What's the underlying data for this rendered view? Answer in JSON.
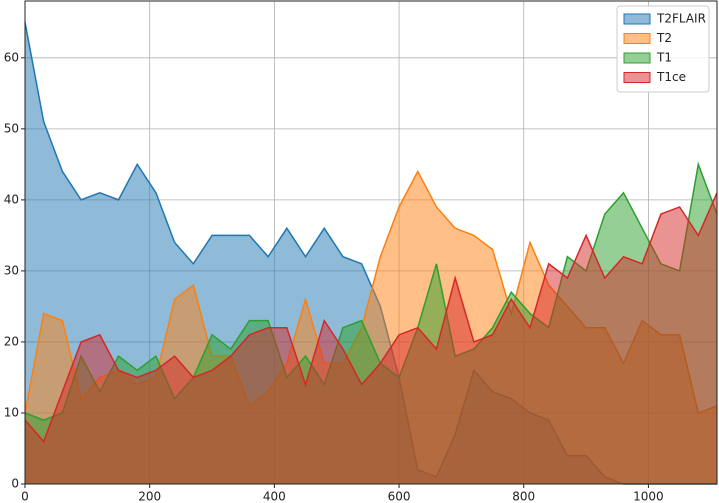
{
  "chart_data": {
    "type": "area",
    "x": [
      0,
      30,
      60,
      90,
      120,
      150,
      180,
      210,
      240,
      270,
      300,
      330,
      360,
      390,
      420,
      450,
      480,
      510,
      540,
      570,
      600,
      630,
      660,
      690,
      720,
      750,
      780,
      810,
      840,
      870,
      900,
      930,
      960,
      990,
      1020,
      1050,
      1080,
      1110
    ],
    "series": [
      {
        "name": "T2FLAIR",
        "color": "#1f77b4",
        "values": [
          65,
          51,
          44,
          40,
          41,
          40,
          45,
          41,
          34,
          31,
          35,
          35,
          35,
          32,
          36,
          32,
          36,
          32,
          31,
          25,
          15,
          2,
          1,
          7,
          16,
          13,
          12,
          10,
          9,
          4,
          4,
          1,
          0,
          0,
          0,
          0,
          0,
          0
        ]
      },
      {
        "name": "T2",
        "color": "#ff7f0e",
        "values": [
          10,
          24,
          23,
          12,
          15,
          16,
          14,
          15,
          26,
          28,
          18,
          18,
          11,
          13,
          17,
          26,
          17,
          17,
          22,
          32,
          39,
          44,
          39,
          36,
          35,
          33,
          24,
          34,
          28,
          25,
          22,
          22,
          17,
          23,
          21,
          21,
          10,
          11
        ]
      },
      {
        "name": "T1",
        "color": "#2ca02c",
        "values": [
          10,
          9,
          10,
          18,
          13,
          18,
          16,
          18,
          12,
          15,
          21,
          19,
          23,
          23,
          15,
          18,
          14,
          22,
          23,
          17,
          15,
          22,
          31,
          18,
          19,
          22,
          27,
          24,
          22,
          32,
          30,
          38,
          41,
          36,
          31,
          30,
          45,
          38
        ]
      },
      {
        "name": "T1ce",
        "color": "#d62728",
        "values": [
          9,
          6,
          13,
          20,
          21,
          16,
          15,
          16,
          18,
          15,
          16,
          18,
          21,
          22,
          22,
          14,
          23,
          19,
          14,
          17,
          21,
          22,
          19,
          29,
          20,
          21,
          26,
          22,
          31,
          29,
          35,
          29,
          32,
          31,
          38,
          39,
          35,
          41
        ]
      }
    ],
    "xlim": [
      0,
      1110
    ],
    "ylim": [
      0,
      68
    ],
    "xticks": [
      0,
      200,
      400,
      600,
      800,
      1000
    ],
    "yticks": [
      0,
      10,
      20,
      30,
      40,
      50,
      60
    ],
    "grid": true,
    "legend": "upper right"
  }
}
